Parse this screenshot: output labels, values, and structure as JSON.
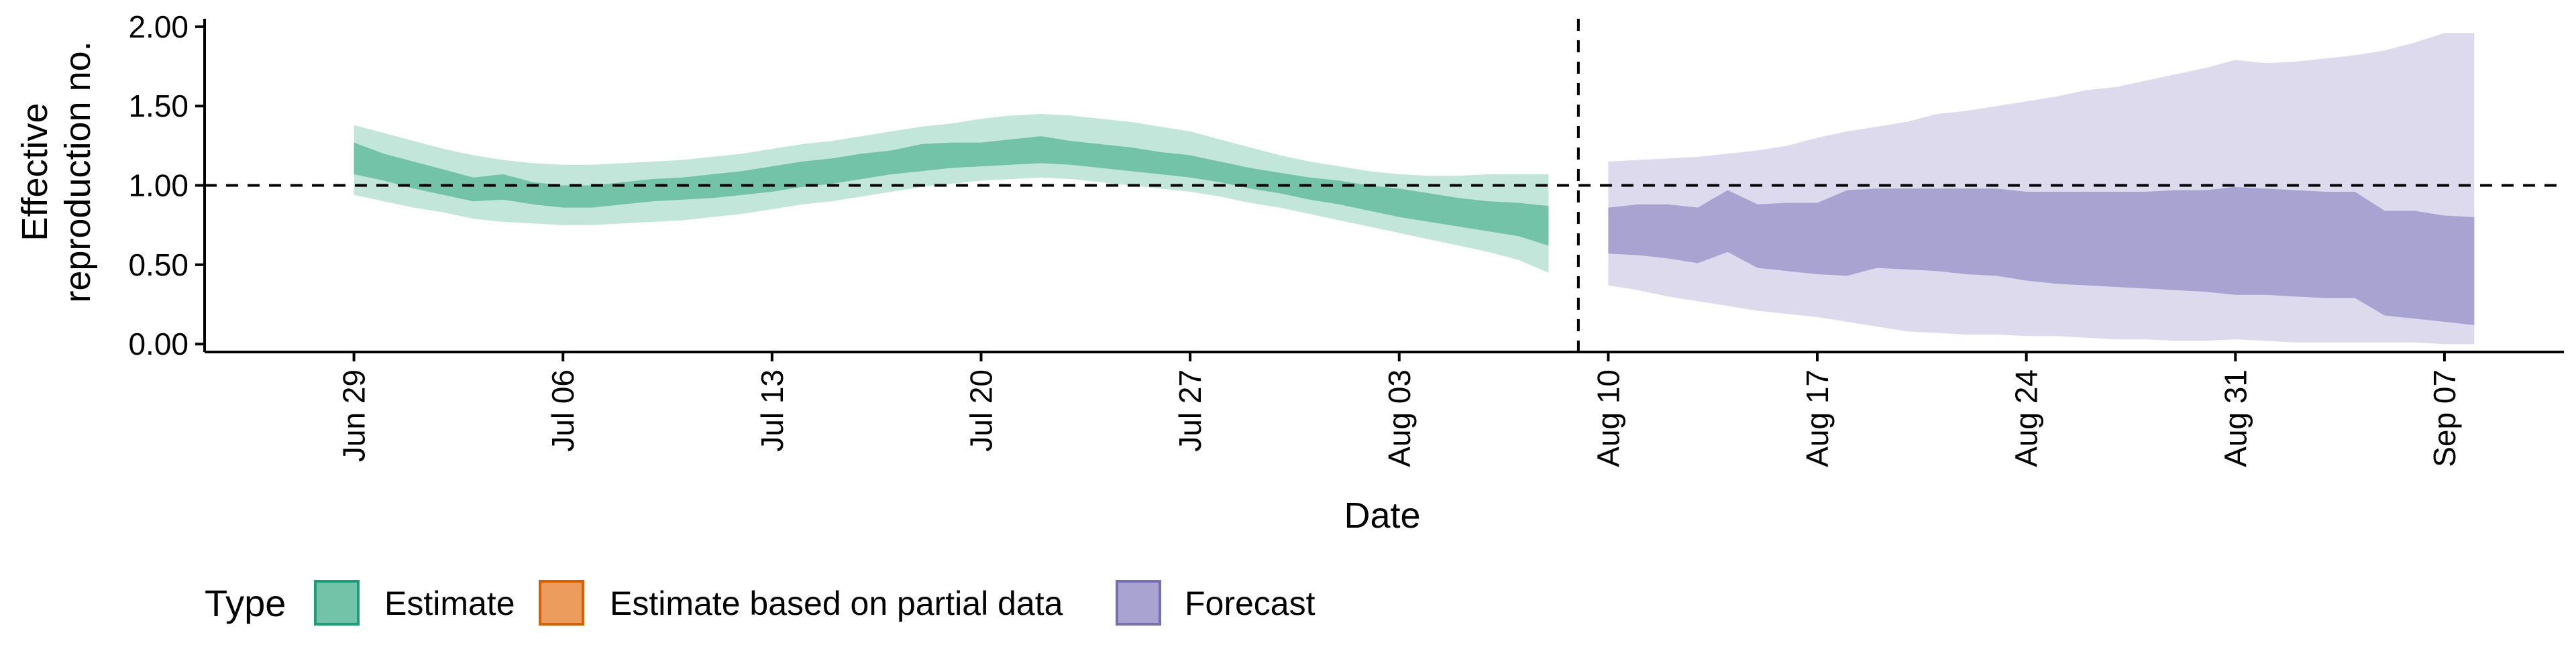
{
  "chart_data": {
    "type": "area",
    "title": "",
    "xlabel": "Date",
    "ylabel": [
      "Effective",
      "reproduction no."
    ],
    "ylim": [
      -0.05,
      2.05
    ],
    "y_ticks": [
      0.0,
      0.5,
      1.0,
      1.5,
      2.0
    ],
    "y_tick_labels": [
      "0.00",
      "0.50",
      "1.00",
      "1.50",
      "2.00"
    ],
    "reference_line_y": 1.0,
    "forecast_date": "2020-08-09",
    "x_range": [
      "2020-06-24",
      "2020-09-11"
    ],
    "x_ticks": [
      {
        "date": "2020-06-29",
        "label": "Jun 29"
      },
      {
        "date": "2020-07-06",
        "label": "Jul 06"
      },
      {
        "date": "2020-07-13",
        "label": "Jul 13"
      },
      {
        "date": "2020-07-20",
        "label": "Jul 20"
      },
      {
        "date": "2020-07-27",
        "label": "Jul 27"
      },
      {
        "date": "2020-08-03",
        "label": "Aug 03"
      },
      {
        "date": "2020-08-10",
        "label": "Aug 10"
      },
      {
        "date": "2020-08-17",
        "label": "Aug 17"
      },
      {
        "date": "2020-08-24",
        "label": "Aug 24"
      },
      {
        "date": "2020-08-31",
        "label": "Aug 31"
      },
      {
        "date": "2020-09-07",
        "label": "Sep 07"
      }
    ],
    "legend": {
      "title": "Type",
      "position": "bottom-left",
      "items": [
        {
          "label": "Estimate",
          "fill": "#72C3A8",
          "stroke": "#1B9E77"
        },
        {
          "label": "Estimate based on partial data",
          "fill": "#EC9C5C",
          "stroke": "#D95F02"
        },
        {
          "label": "Forecast",
          "fill": "#A9A3D1",
          "stroke": "#7570B3"
        }
      ]
    },
    "series": [
      {
        "name": "Estimate",
        "outer_fill": "#C3E6DA",
        "inner_fill": "#72C3A8",
        "dates": [
          "2020-06-29",
          "2020-06-30",
          "2020-07-01",
          "2020-07-02",
          "2020-07-03",
          "2020-07-04",
          "2020-07-05",
          "2020-07-06",
          "2020-07-07",
          "2020-07-08",
          "2020-07-09",
          "2020-07-10",
          "2020-07-11",
          "2020-07-12",
          "2020-07-13",
          "2020-07-14",
          "2020-07-15",
          "2020-07-16",
          "2020-07-17",
          "2020-07-18",
          "2020-07-19",
          "2020-07-20",
          "2020-07-21",
          "2020-07-22",
          "2020-07-23",
          "2020-07-24",
          "2020-07-25",
          "2020-07-26",
          "2020-07-27",
          "2020-07-28",
          "2020-07-29",
          "2020-07-30",
          "2020-07-31",
          "2020-08-01",
          "2020-08-02",
          "2020-08-03",
          "2020-08-04",
          "2020-08-05",
          "2020-08-06",
          "2020-08-07",
          "2020-08-08"
        ],
        "lower_90": [
          0.94,
          0.9,
          0.86,
          0.83,
          0.79,
          0.77,
          0.76,
          0.75,
          0.75,
          0.76,
          0.77,
          0.78,
          0.8,
          0.82,
          0.85,
          0.88,
          0.9,
          0.93,
          0.96,
          0.99,
          1.01,
          1.03,
          1.04,
          1.05,
          1.04,
          1.02,
          1.0,
          0.98,
          0.96,
          0.93,
          0.89,
          0.86,
          0.82,
          0.78,
          0.74,
          0.7,
          0.66,
          0.62,
          0.58,
          0.53,
          0.45
        ],
        "upper_90": [
          1.38,
          1.33,
          1.28,
          1.23,
          1.19,
          1.16,
          1.14,
          1.13,
          1.13,
          1.14,
          1.15,
          1.16,
          1.18,
          1.2,
          1.23,
          1.26,
          1.28,
          1.31,
          1.34,
          1.37,
          1.39,
          1.42,
          1.44,
          1.45,
          1.44,
          1.42,
          1.4,
          1.37,
          1.34,
          1.29,
          1.24,
          1.19,
          1.15,
          1.12,
          1.09,
          1.07,
          1.06,
          1.06,
          1.07,
          1.07,
          1.07
        ],
        "lower_50": [
          1.07,
          1.03,
          0.98,
          0.94,
          0.9,
          0.91,
          0.88,
          0.86,
          0.86,
          0.88,
          0.9,
          0.91,
          0.92,
          0.94,
          0.96,
          0.99,
          1.01,
          1.04,
          1.07,
          1.09,
          1.11,
          1.12,
          1.13,
          1.14,
          1.13,
          1.11,
          1.09,
          1.07,
          1.05,
          1.02,
          0.98,
          0.95,
          0.91,
          0.88,
          0.84,
          0.8,
          0.77,
          0.74,
          0.71,
          0.68,
          0.62
        ],
        "upper_50": [
          1.27,
          1.2,
          1.15,
          1.1,
          1.05,
          1.07,
          1.02,
          1.0,
          1.0,
          1.02,
          1.04,
          1.05,
          1.07,
          1.09,
          1.12,
          1.15,
          1.17,
          1.2,
          1.22,
          1.26,
          1.27,
          1.27,
          1.29,
          1.31,
          1.28,
          1.26,
          1.24,
          1.21,
          1.19,
          1.15,
          1.11,
          1.08,
          1.05,
          1.03,
          1.0,
          0.98,
          0.95,
          0.92,
          0.9,
          0.89,
          0.87
        ]
      },
      {
        "name": "Forecast",
        "outer_fill": "#DCDAEC",
        "inner_fill": "#A9A3D1",
        "dates": [
          "2020-08-10",
          "2020-08-11",
          "2020-08-12",
          "2020-08-13",
          "2020-08-14",
          "2020-08-15",
          "2020-08-16",
          "2020-08-17",
          "2020-08-18",
          "2020-08-19",
          "2020-08-20",
          "2020-08-21",
          "2020-08-22",
          "2020-08-23",
          "2020-08-24",
          "2020-08-25",
          "2020-08-26",
          "2020-08-27",
          "2020-08-28",
          "2020-08-29",
          "2020-08-30",
          "2020-08-31",
          "2020-09-01",
          "2020-09-02",
          "2020-09-03",
          "2020-09-04",
          "2020-09-05",
          "2020-09-06",
          "2020-09-07",
          "2020-09-08"
        ],
        "lower_90": [
          0.37,
          0.34,
          0.3,
          0.27,
          0.24,
          0.21,
          0.19,
          0.17,
          0.14,
          0.11,
          0.08,
          0.07,
          0.06,
          0.06,
          0.05,
          0.05,
          0.04,
          0.03,
          0.03,
          0.02,
          0.02,
          0.03,
          0.02,
          0.01,
          0.01,
          0.01,
          0.01,
          0.01,
          0.0,
          0.0
        ],
        "upper_90": [
          1.15,
          1.16,
          1.17,
          1.18,
          1.2,
          1.22,
          1.25,
          1.3,
          1.34,
          1.37,
          1.4,
          1.45,
          1.47,
          1.5,
          1.53,
          1.56,
          1.6,
          1.62,
          1.66,
          1.7,
          1.74,
          1.79,
          1.77,
          1.78,
          1.8,
          1.82,
          1.85,
          1.9,
          1.96,
          1.96
        ],
        "lower_50": [
          0.57,
          0.56,
          0.54,
          0.51,
          0.58,
          0.48,
          0.46,
          0.44,
          0.43,
          0.48,
          0.47,
          0.46,
          0.44,
          0.43,
          0.4,
          0.38,
          0.37,
          0.36,
          0.35,
          0.34,
          0.33,
          0.31,
          0.31,
          0.3,
          0.29,
          0.29,
          0.18,
          0.16,
          0.14,
          0.12
        ],
        "upper_50": [
          0.86,
          0.88,
          0.88,
          0.86,
          0.97,
          0.88,
          0.89,
          0.89,
          0.97,
          0.98,
          0.98,
          0.98,
          0.98,
          0.98,
          0.96,
          0.96,
          0.96,
          0.96,
          0.96,
          0.97,
          0.97,
          0.99,
          0.98,
          0.97,
          0.96,
          0.96,
          0.84,
          0.84,
          0.81,
          0.8
        ]
      }
    ]
  }
}
